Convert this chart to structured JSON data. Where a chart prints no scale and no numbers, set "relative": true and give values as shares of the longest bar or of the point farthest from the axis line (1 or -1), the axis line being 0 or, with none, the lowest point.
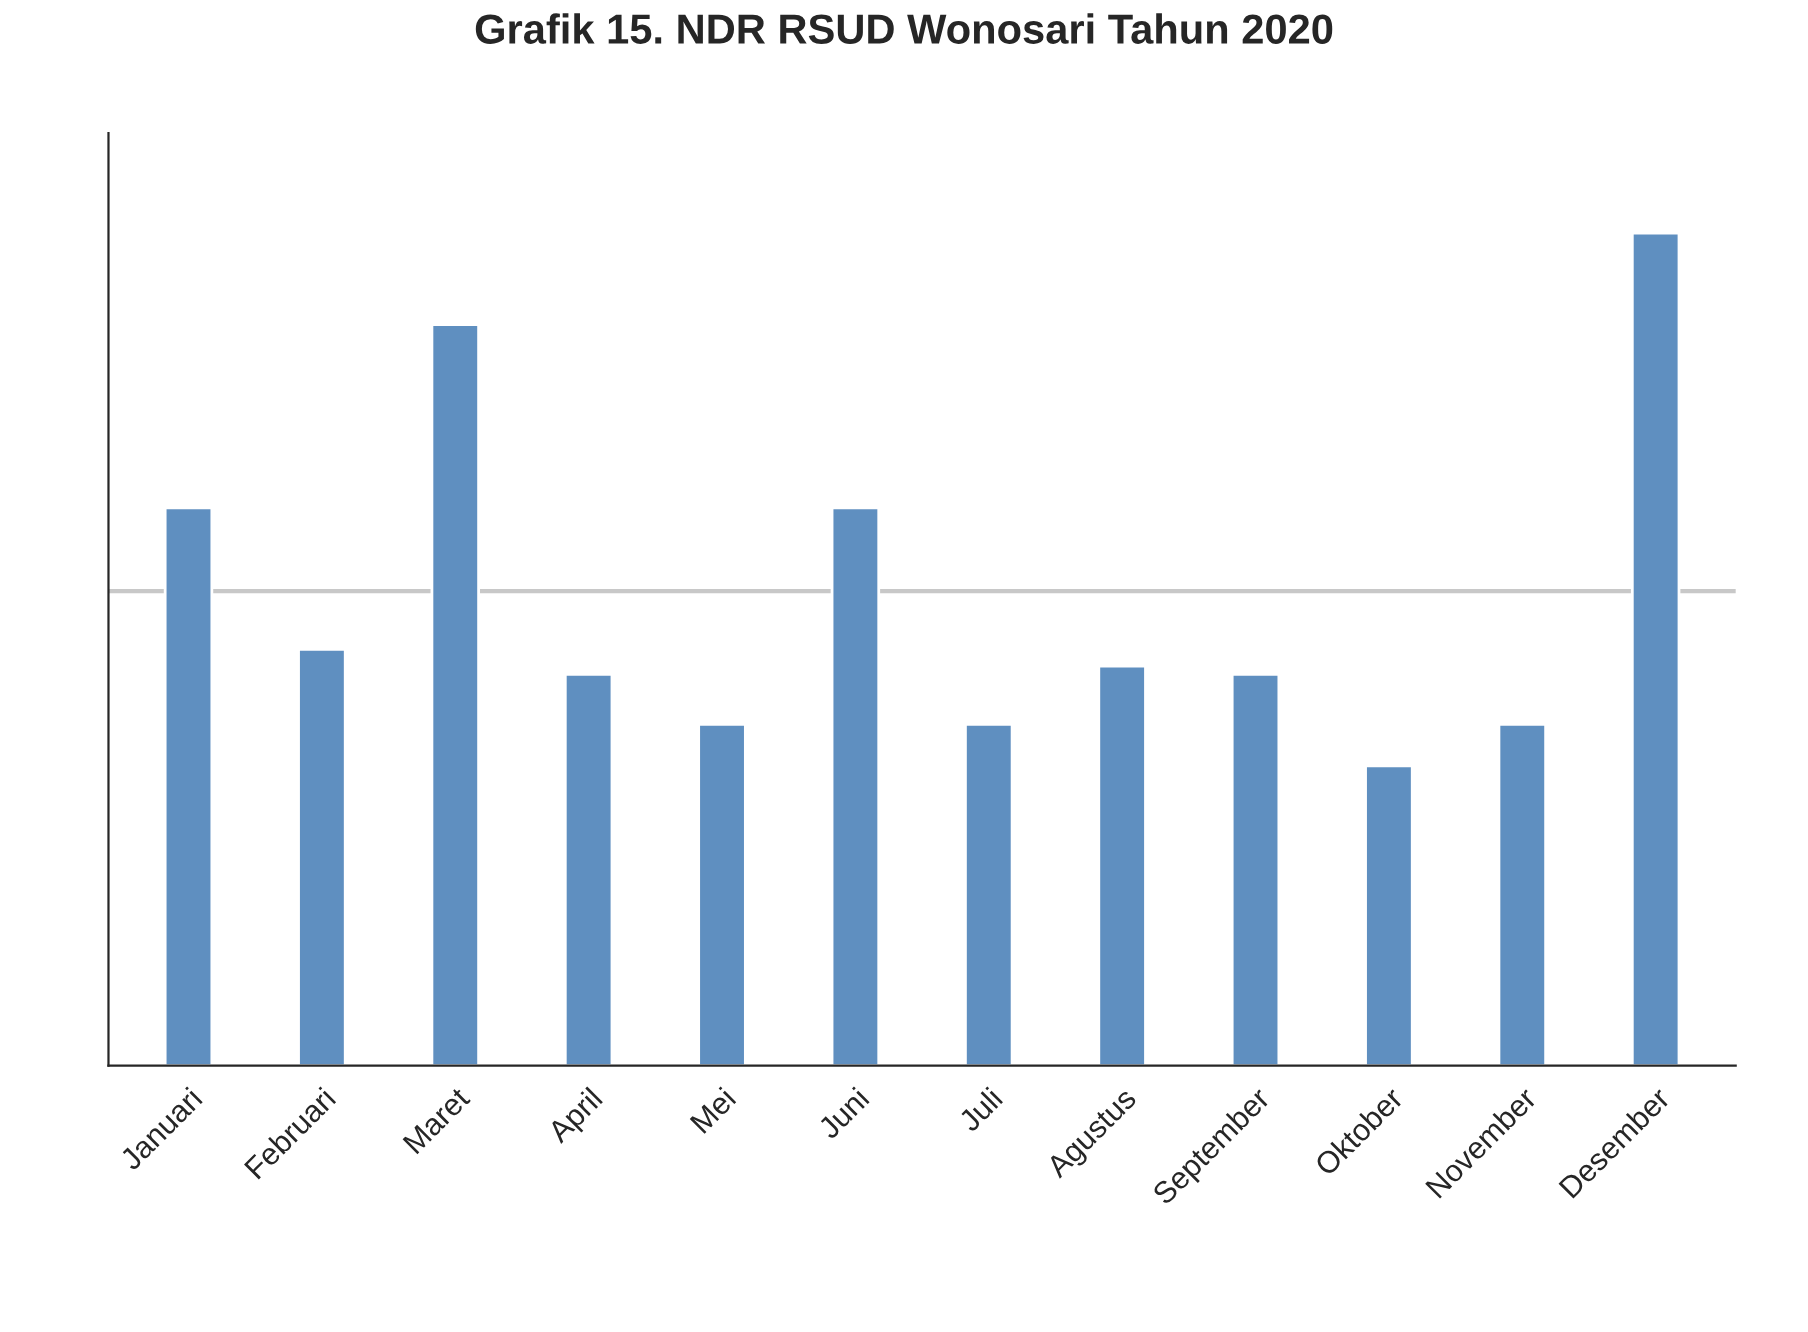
{
  "chart_data": {
    "type": "bar",
    "title": "Grafik 15. NDR RSUD Wonosari Tahun 2020",
    "relative": true,
    "categories": [
      "Januari",
      "Februari",
      "Maret",
      "April",
      "Mei",
      "Juni",
      "Juli",
      "Agustus",
      "September",
      "Oktober",
      "November",
      "Desember"
    ],
    "series": [
      {
        "color": "#5f8fc0",
        "values": [
          0.67,
          0.5,
          0.89,
          0.47,
          0.41,
          0.67,
          0.41,
          0.48,
          0.47,
          0.36,
          0.41,
          1.0
        ]
      }
    ],
    "ref_lines": [
      {
        "axis": "y",
        "value": 0.57,
        "color": "#c8c8c8"
      }
    ],
    "grid": false,
    "legend": false
  }
}
